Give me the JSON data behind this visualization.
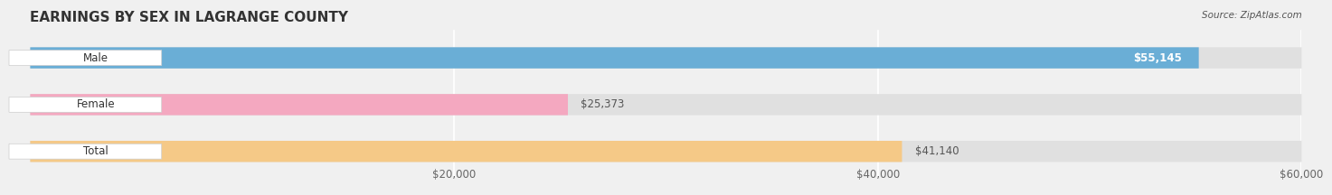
{
  "title": "EARNINGS BY SEX IN LAGRANGE COUNTY",
  "source": "Source: ZipAtlas.com",
  "categories": [
    "Male",
    "Female",
    "Total"
  ],
  "values": [
    55145,
    25373,
    41140
  ],
  "bar_colors": [
    "#6aaed6",
    "#f4a8c0",
    "#f5c987"
  ],
  "bar_bg_color": "#e0e0e0",
  "value_labels": [
    "$55,145",
    "$25,373",
    "$41,140"
  ],
  "value_label_colors": [
    "#ffffff",
    "#555555",
    "#555555"
  ],
  "value_label_inside": [
    true,
    false,
    false
  ],
  "xmin": 0,
  "xmax": 60000,
  "xticks": [
    20000,
    40000,
    60000
  ],
  "xtick_labels": [
    "$20,000",
    "$40,000",
    "$60,000"
  ],
  "background_color": "#f0f0f0",
  "title_fontsize": 11,
  "tick_fontsize": 8.5,
  "label_fontsize": 8.5,
  "category_fontsize": 8.5
}
